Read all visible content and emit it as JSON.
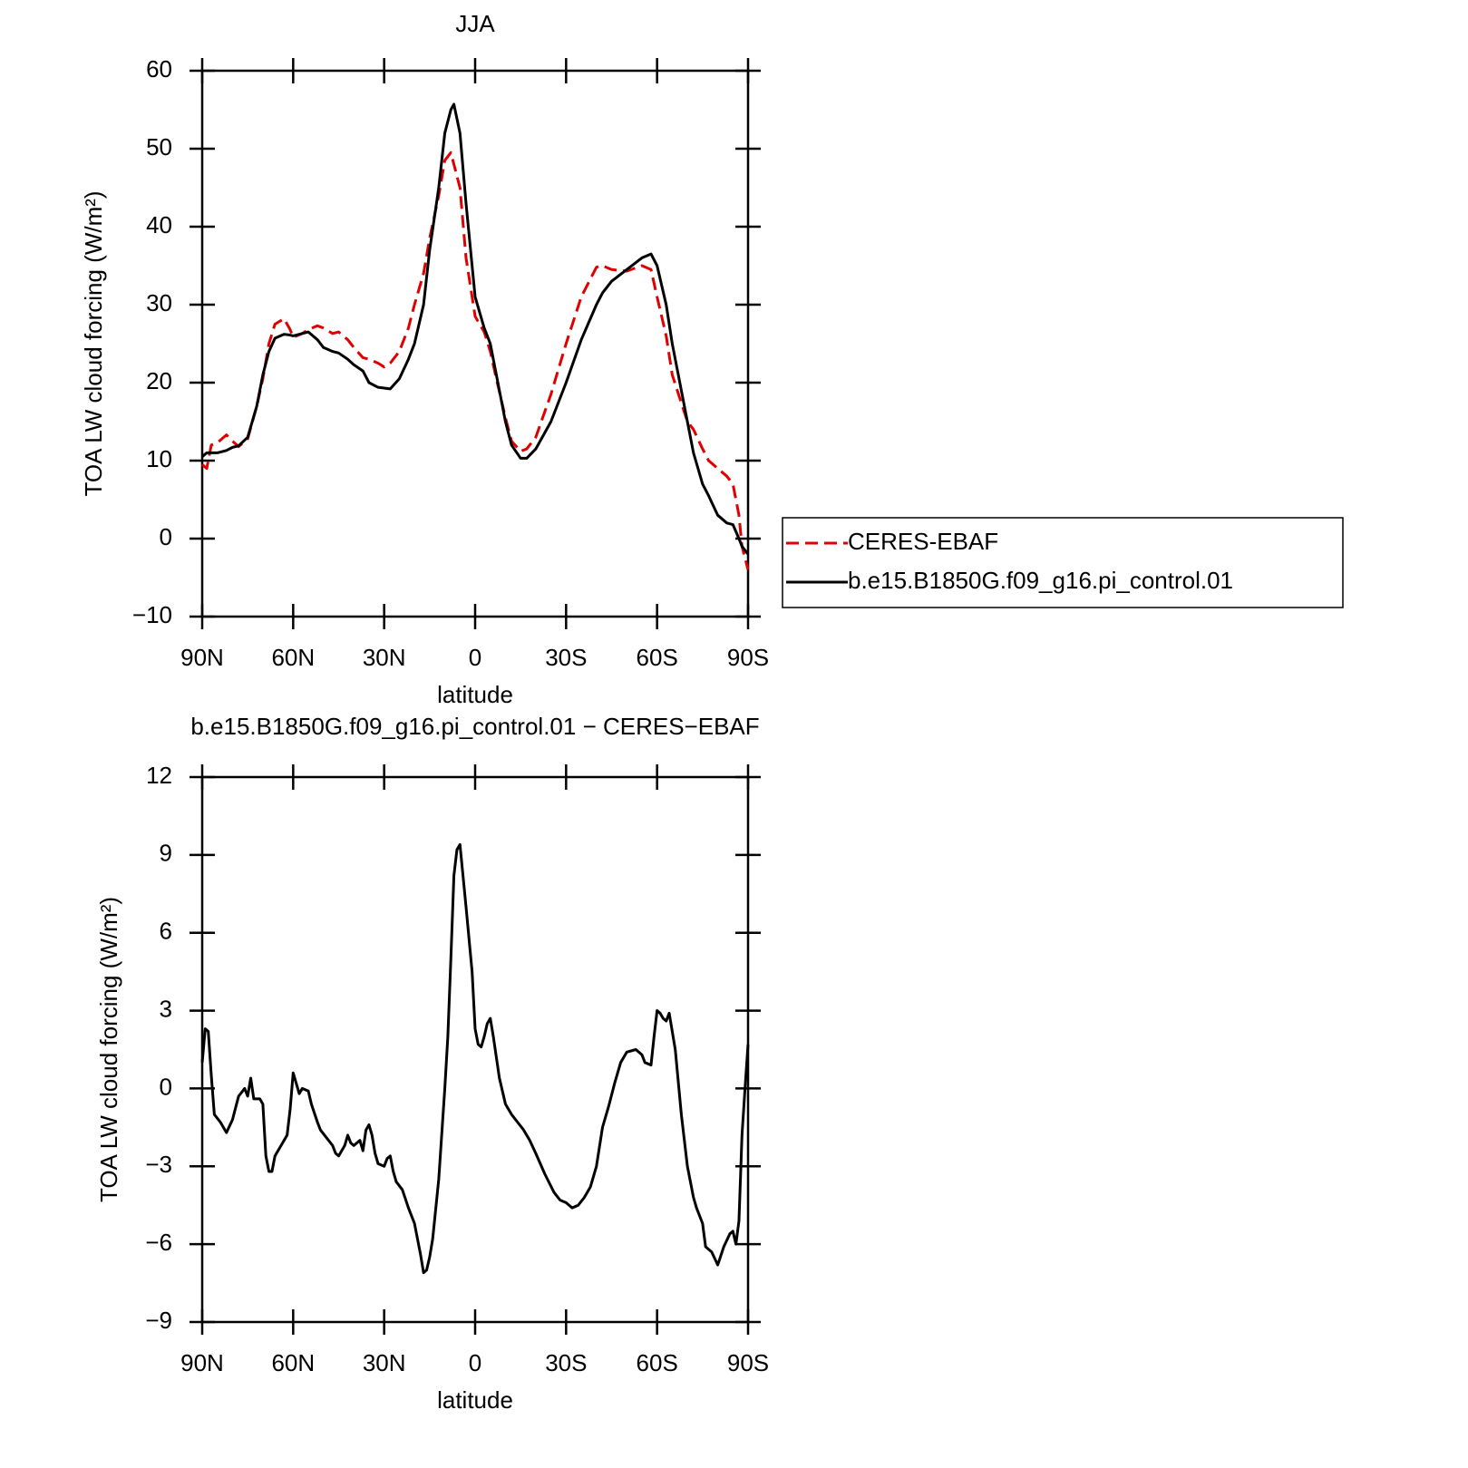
{
  "chart_data": [
    {
      "type": "line",
      "title": "JJA",
      "x_label": "latitude",
      "y_label": "TOA LW cloud forcing (W/m²)",
      "xlim": [
        90,
        -90
      ],
      "xticks": [
        {
          "value": 90,
          "label": "90N"
        },
        {
          "value": 60,
          "label": "60N"
        },
        {
          "value": 30,
          "label": "30N"
        },
        0,
        {
          "value": -30,
          "label": "30S"
        },
        {
          "value": -60,
          "label": "60S"
        },
        {
          "value": -90,
          "label": "90S"
        }
      ],
      "ylim": [
        -10,
        60
      ],
      "yticks": [
        {
          "value": -10,
          "label": "−10"
        },
        0,
        10,
        20,
        30,
        40,
        50,
        60
      ],
      "legend": "right",
      "x": [
        90,
        88.5,
        87,
        85,
        82,
        80,
        78,
        75,
        72,
        70,
        68,
        66,
        63,
        61,
        60,
        57,
        55,
        52,
        50,
        47,
        45,
        42,
        40,
        37,
        35,
        32,
        30,
        28,
        25,
        22,
        20,
        17,
        15,
        12,
        10,
        8,
        7,
        5,
        3,
        0,
        -3,
        -5,
        -7,
        -10,
        -12,
        -15,
        -17,
        -20,
        -25,
        -30,
        -35,
        -40,
        -42,
        -45,
        -50,
        -55,
        -58,
        -60,
        -63,
        -65,
        -70,
        -72,
        -75,
        -77,
        -80,
        -83,
        -85,
        -87,
        -88,
        -90
      ],
      "series": [
        {
          "name": "CERES-EBAF",
          "color": "#e00000",
          "linestyle": "dashed",
          "values": [
            9.5,
            9,
            12,
            12.3,
            13.3,
            12.5,
            11.8,
            12.8,
            17,
            20.5,
            25,
            27.5,
            28.2,
            26.8,
            25.8,
            26.3,
            26.8,
            27.3,
            27,
            26.3,
            26.5,
            25.5,
            24.5,
            23.2,
            23,
            22.5,
            22,
            22.5,
            24,
            27,
            30,
            34,
            38.5,
            44,
            48.5,
            49.5,
            48,
            45,
            36,
            28.5,
            26.5,
            24,
            20.5,
            15.5,
            12.5,
            11.2,
            11.5,
            13,
            18.5,
            25,
            31,
            34.8,
            35,
            34.5,
            34.3,
            35,
            34.5,
            31,
            26,
            21,
            15,
            14,
            11.5,
            10,
            9,
            8,
            7,
            3,
            -1,
            -4
          ]
        },
        {
          "name": "b.e15.B1850G.f09_g16.pi_control.01",
          "color": "#000000",
          "linestyle": "solid",
          "values": [
            10.5,
            11,
            11,
            11,
            11.3,
            11.7,
            11.9,
            13,
            17,
            21,
            24,
            25.7,
            26.2,
            26.1,
            26,
            26.3,
            26.5,
            25.5,
            24.5,
            24,
            23.8,
            23,
            22.3,
            21.5,
            20,
            19.4,
            19.3,
            19.2,
            20.5,
            23,
            25,
            30,
            37,
            45,
            52,
            55,
            55.7,
            52,
            43,
            31,
            27,
            25,
            21,
            15,
            12,
            10.3,
            10.3,
            11.5,
            15,
            20,
            25.5,
            30,
            31.5,
            33,
            34.5,
            36,
            36.5,
            35,
            30,
            25,
            15,
            11,
            7,
            5.5,
            3,
            2,
            1.8,
            0,
            -1,
            -2
          ]
        }
      ]
    },
    {
      "type": "line",
      "title": "b.e15.B1850G.f09_g16.pi_control.01 − CERES−EBAF",
      "x_label": "latitude",
      "y_label": "TOA LW cloud forcing (W/m²)",
      "xlim": [
        90,
        -90
      ],
      "xticks": [
        {
          "value": 90,
          "label": "90N"
        },
        {
          "value": 60,
          "label": "60N"
        },
        {
          "value": 30,
          "label": "30N"
        },
        0,
        {
          "value": -30,
          "label": "30S"
        },
        {
          "value": -60,
          "label": "60S"
        },
        {
          "value": -90,
          "label": "90S"
        }
      ],
      "ylim": [
        -9,
        12
      ],
      "yticks": [
        {
          "value": -9,
          "label": "−9"
        },
        {
          "value": -6,
          "label": "−6"
        },
        {
          "value": -3,
          "label": "−3"
        },
        0,
        3,
        6,
        9,
        12
      ],
      "x": [
        90,
        89,
        88,
        87,
        86,
        84,
        82,
        80,
        78,
        76,
        75,
        74,
        73,
        71,
        70,
        69,
        68,
        67,
        66,
        64,
        62,
        61,
        60,
        59,
        58,
        57,
        55,
        54,
        52,
        51,
        49,
        47,
        46,
        45,
        43,
        42,
        41,
        40,
        38,
        37,
        36,
        35,
        34,
        33,
        32,
        30,
        29,
        28,
        27,
        26,
        24,
        22,
        20,
        18,
        17,
        16,
        15,
        14,
        12,
        10,
        9,
        8,
        7,
        6,
        5,
        4,
        3,
        1,
        0,
        -1,
        -2,
        -3,
        -4,
        -5,
        -6,
        -7,
        -8,
        -10,
        -12,
        -14,
        -16,
        -18,
        -20,
        -23,
        -26,
        -28,
        -30,
        -32,
        -34,
        -36,
        -38,
        -40,
        -42,
        -44,
        -46,
        -48,
        -50,
        -53,
        -55,
        -56,
        -58,
        -59,
        -60,
        -61,
        -62,
        -63,
        -64,
        -66,
        -68,
        -70,
        -71,
        -72,
        -73,
        -75,
        -76,
        -78,
        -80,
        -82,
        -84,
        -85,
        -86,
        -87,
        -88,
        -89,
        -90
      ],
      "series": [
        {
          "color": "#000000",
          "linestyle": "solid",
          "values": [
            1.0,
            2.3,
            2.2,
            0.5,
            -1,
            -1.3,
            -1.7,
            -1.2,
            -0.3,
            0,
            -0.3,
            0.4,
            -0.4,
            -0.4,
            -0.6,
            -2.6,
            -3.2,
            -3.2,
            -2.6,
            -2.2,
            -1.8,
            -0.8,
            0.6,
            0.2,
            -0.2,
            0,
            -0.1,
            -0.6,
            -1.3,
            -1.6,
            -1.9,
            -2.2,
            -2.5,
            -2.6,
            -2.2,
            -1.8,
            -2.1,
            -2.2,
            -2.0,
            -2.4,
            -1.6,
            -1.4,
            -1.8,
            -2.5,
            -2.9,
            -3.0,
            -2.7,
            -2.6,
            -3.2,
            -3.6,
            -3.9,
            -4.6,
            -5.2,
            -6.4,
            -7.1,
            -7.0,
            -6.5,
            -5.8,
            -3.5,
            0,
            2,
            5,
            8.2,
            9.2,
            9.4,
            8.2,
            7,
            4.5,
            2.3,
            1.7,
            1.6,
            2,
            2.5,
            2.7,
            2.0,
            1.2,
            0.4,
            -0.6,
            -1.0,
            -1.3,
            -1.6,
            -2.0,
            -2.5,
            -3.3,
            -4.0,
            -4.3,
            -4.4,
            -4.6,
            -4.5,
            -4.2,
            -3.8,
            -3.0,
            -1.5,
            -0.7,
            0.2,
            1.0,
            1.4,
            1.5,
            1.3,
            1.0,
            0.9,
            2.0,
            3.0,
            2.9,
            2.7,
            2.6,
            2.9,
            1.5,
            -1.0,
            -3.0,
            -3.6,
            -4.2,
            -4.6,
            -5.2,
            -6.1,
            -6.3,
            -6.8,
            -6.1,
            -5.6,
            -5.5,
            -6.0,
            -5.1,
            -1.8,
            0,
            1.7
          ]
        }
      ]
    }
  ]
}
